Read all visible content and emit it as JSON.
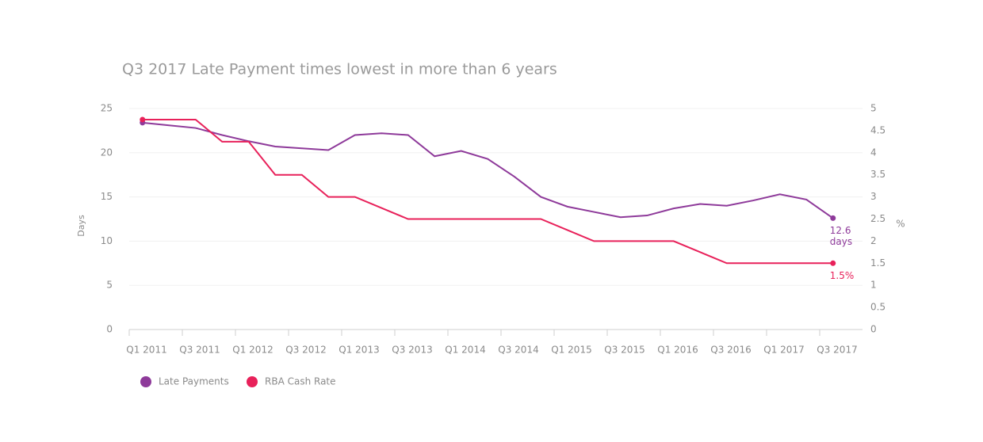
{
  "chart_data": {
    "type": "line",
    "title": "Q3 2017 Late Payment times lowest in more than 6 years",
    "ylabel": "Days",
    "y2label": "%",
    "categories": [
      "Q1 2011",
      null,
      "Q3 2011",
      null,
      "Q1 2012",
      null,
      "Q3 2012",
      null,
      "Q1 2013",
      null,
      "Q3 2013",
      null,
      "Q1 2014",
      null,
      "Q3 2014",
      null,
      "Q1 2015",
      null,
      "Q3 2015",
      null,
      "Q1 2016",
      null,
      "Q3 2016",
      null,
      "Q1 2017",
      null,
      "Q3 2017"
    ],
    "series": [
      {
        "name": "Late Payments",
        "color": "#8e3a9a",
        "values": [
          23.4,
          23.1,
          22.8,
          22.0,
          21.3,
          20.7,
          20.5,
          20.3,
          22.0,
          22.2,
          22.0,
          19.6,
          20.2,
          19.3,
          17.3,
          15.0,
          13.9,
          13.3,
          12.7,
          12.9,
          13.7,
          14.2,
          14.0,
          14.6,
          15.3,
          14.7,
          12.6
        ],
        "value_labels": [
          null,
          null,
          null,
          null,
          null,
          null,
          null,
          null,
          null,
          null,
          null,
          null,
          null,
          null,
          null,
          null,
          null,
          null,
          null,
          null,
          null,
          null,
          null,
          null,
          null,
          null,
          "12.6 days"
        ]
      },
      {
        "name": "RBA Cash Rate",
        "color": "#e8215a",
        "axis": "y2",
        "values": [
          4.75,
          4.75,
          4.75,
          4.25,
          4.25,
          3.5,
          3.5,
          3.0,
          3.0,
          2.75,
          2.5,
          2.5,
          2.5,
          2.5,
          2.5,
          2.5,
          2.25,
          2.0,
          2.0,
          2.0,
          2.0,
          1.75,
          1.5,
          1.5,
          1.5,
          1.5,
          1.5
        ],
        "value_labels": [
          null,
          null,
          null,
          null,
          null,
          null,
          null,
          null,
          null,
          null,
          null,
          null,
          null,
          null,
          null,
          null,
          null,
          null,
          null,
          null,
          null,
          null,
          null,
          null,
          null,
          null,
          "1.5%"
        ]
      }
    ],
    "ylim": [
      0,
      25
    ],
    "yticks": [
      0,
      5,
      10,
      15,
      20,
      25
    ],
    "y2lim": [
      0,
      5
    ],
    "y2ticks": [
      0,
      0.5,
      1,
      1.5,
      2,
      2.5,
      3,
      3.5,
      4,
      4.5,
      5
    ],
    "grid": true,
    "legend": "bottom-left"
  }
}
